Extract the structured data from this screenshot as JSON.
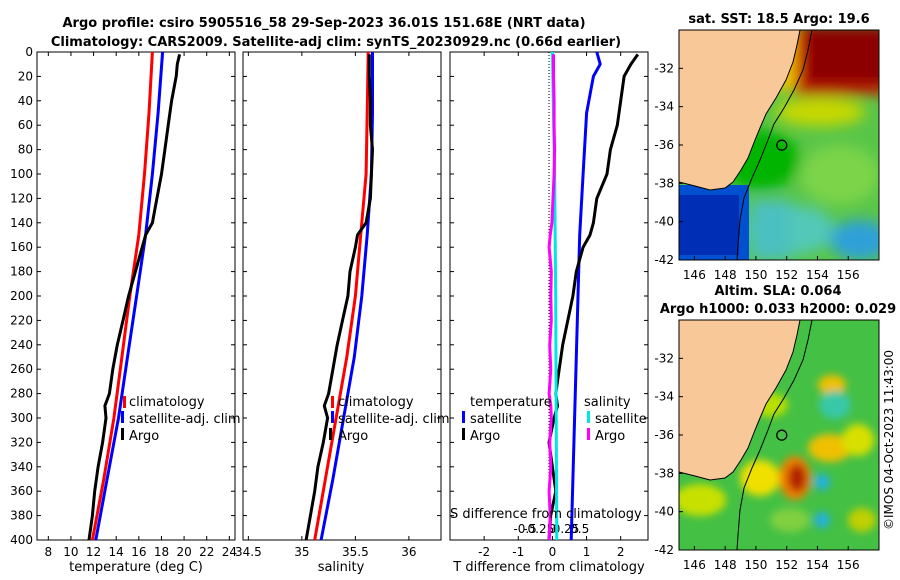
{
  "figure": {
    "title_line1": "Argo profile: csiro 5905516_58 29-Sep-2023 36.01S 151.68E (NRT data)",
    "title_line2": "Climatology: CARS2009. Satellite-adj clim: synTS_20230929.nc (0.66d earlier)",
    "credit": "©IMOS 04-Oct-2023 11:43:00"
  },
  "chart_data": [
    {
      "id": "temperature",
      "type": "line",
      "xlabel": "temperature (deg C)",
      "ylabel": "",
      "xlim": [
        7,
        24.5
      ],
      "ylim": [
        0,
        400
      ],
      "xticks": [
        8,
        10,
        12,
        14,
        16,
        18,
        20,
        22,
        24
      ],
      "xtick_labels": [
        "8",
        "10",
        "12",
        "14",
        "16",
        "18",
        "20",
        "22",
        "24"
      ],
      "yticks": [
        0,
        20,
        40,
        60,
        80,
        100,
        120,
        140,
        160,
        180,
        200,
        220,
        240,
        260,
        280,
        300,
        320,
        340,
        360,
        380,
        400
      ],
      "legend": [
        "climatology",
        "satellite-adj. clim",
        "Argo"
      ],
      "series": [
        {
          "name": "climatology",
          "color": "#ff0000",
          "depth": [
            0,
            50,
            100,
            150,
            200,
            250,
            300,
            350,
            400
          ],
          "values": [
            17.2,
            16.9,
            16.5,
            16.0,
            15.2,
            14.5,
            13.8,
            12.9,
            11.9
          ]
        },
        {
          "name": "satellite-adj. clim",
          "color": "#0000ff",
          "depth": [
            0,
            50,
            100,
            150,
            200,
            250,
            300,
            350,
            400
          ],
          "values": [
            18.1,
            17.7,
            17.2,
            16.6,
            15.8,
            15.0,
            14.2,
            13.2,
            12.2
          ]
        },
        {
          "name": "Argo",
          "color": "#000000",
          "depth": [
            2,
            10,
            20,
            40,
            60,
            80,
            100,
            120,
            140,
            150,
            160,
            180,
            200,
            220,
            240,
            260,
            280,
            290,
            300,
            320,
            340,
            360,
            380,
            400
          ],
          "values": [
            19.6,
            19.4,
            19.3,
            18.9,
            18.6,
            18.3,
            18.0,
            17.6,
            17.2,
            16.6,
            16.3,
            15.7,
            15.1,
            14.6,
            14.1,
            13.7,
            13.4,
            13.0,
            13.1,
            12.8,
            12.4,
            12.1,
            11.9,
            11.6
          ]
        }
      ]
    },
    {
      "id": "salinity",
      "type": "line",
      "xlabel": "salinity",
      "xlim": [
        34.45,
        36.3
      ],
      "ylim": [
        0,
        400
      ],
      "xticks": [
        34.5,
        35,
        35.5,
        36
      ],
      "xtick_labels": [
        "34.5",
        "35",
        "35.5",
        "36"
      ],
      "legend": [
        "climatology",
        "satellite-adj. clim",
        "Argo"
      ],
      "series": [
        {
          "name": "climatology",
          "color": "#ff0000",
          "depth": [
            0,
            50,
            100,
            150,
            200,
            250,
            300,
            350,
            400
          ],
          "values": [
            35.62,
            35.61,
            35.6,
            35.55,
            35.5,
            35.42,
            35.32,
            35.22,
            35.12
          ]
        },
        {
          "name": "satellite-adj. clim",
          "color": "#0000ff",
          "depth": [
            0,
            50,
            100,
            150,
            200,
            250,
            300,
            350,
            400
          ],
          "values": [
            35.66,
            35.66,
            35.65,
            35.61,
            35.56,
            35.49,
            35.39,
            35.29,
            35.18
          ]
        },
        {
          "name": "Argo",
          "color": "#000000",
          "depth": [
            2,
            20,
            40,
            60,
            80,
            100,
            120,
            140,
            150,
            160,
            180,
            200,
            220,
            240,
            260,
            280,
            290,
            300,
            320,
            340,
            360,
            380,
            400
          ],
          "values": [
            35.63,
            35.63,
            35.64,
            35.64,
            35.66,
            35.65,
            35.64,
            35.6,
            35.52,
            35.5,
            35.45,
            35.43,
            35.38,
            35.33,
            35.29,
            35.25,
            35.21,
            35.24,
            35.2,
            35.15,
            35.12,
            35.08,
            35.04
          ]
        }
      ]
    },
    {
      "id": "differences",
      "type": "line",
      "xlabel": "T difference from climatology",
      "xlabel2": "S difference from climatology",
      "xlim": [
        -3,
        2.8
      ],
      "ylim": [
        0,
        400
      ],
      "xticks": [
        -2,
        -1,
        0,
        1,
        2
      ],
      "xtick_labels": [
        "-2",
        "-1",
        "0",
        "1",
        "2"
      ],
      "xticks2": [
        -0.5,
        -0.25,
        0,
        0.25,
        0.5
      ],
      "xtick2_labels": [
        "-0.5",
        "-0.25",
        "0",
        "0.25",
        "0.5"
      ],
      "legend_titles": [
        "temperature",
        "salinity"
      ],
      "legend_left": [
        "satellite",
        "Argo"
      ],
      "legend_right": [
        "satellite",
        "Argo"
      ],
      "series": [
        {
          "name": "T satellite",
          "color": "#0000ff",
          "depth": [
            0,
            10,
            20,
            50,
            100,
            150,
            200,
            250,
            300,
            350,
            400
          ],
          "values": [
            1.3,
            1.4,
            1.2,
            1.0,
            0.9,
            0.8,
            0.75,
            0.7,
            0.65,
            0.6,
            0.55
          ]
        },
        {
          "name": "T Argo",
          "color": "#000000",
          "depth": [
            2,
            10,
            20,
            40,
            60,
            80,
            100,
            120,
            140,
            150,
            160,
            180,
            200,
            220,
            240,
            260,
            280,
            290,
            300,
            320,
            340,
            360,
            380,
            400
          ],
          "values": [
            2.5,
            2.3,
            2.1,
            2.0,
            1.9,
            1.7,
            1.6,
            1.3,
            1.2,
            1.1,
            0.9,
            0.7,
            0.6,
            0.45,
            0.3,
            0.2,
            0.1,
            0.15,
            0.05,
            -0.1,
            0.0,
            0.1,
            -0.05,
            -0.1
          ]
        },
        {
          "name": "S satellite",
          "color": "#00e5e5",
          "depth": [
            0,
            100,
            200,
            300,
            400
          ],
          "values": [
            0.0,
            0.04,
            0.06,
            0.07,
            0.08
          ]
        },
        {
          "name": "S Argo",
          "color": "#ff00ff",
          "depth": [
            2,
            20,
            40,
            60,
            80,
            100,
            120,
            140,
            150,
            160,
            180,
            200,
            220,
            240,
            260,
            280,
            290,
            300,
            320,
            340,
            360,
            380,
            400
          ],
          "values": [
            0.02,
            0.02,
            0.03,
            0.03,
            0.04,
            0.03,
            0.01,
            -0.01,
            -0.04,
            -0.06,
            -0.02,
            -0.03,
            -0.02,
            -0.05,
            -0.03,
            -0.06,
            -0.03,
            -0.02,
            -0.05,
            -0.03,
            -0.06,
            -0.04,
            -0.06
          ]
        }
      ]
    },
    {
      "id": "sst_map",
      "type": "heatmap",
      "title": "sat. SST: 18.5 Argo: 19.6",
      "xlim": [
        145,
        158
      ],
      "ylim": [
        -42,
        -30
      ],
      "xticks": [
        146,
        148,
        150,
        152,
        154,
        156
      ],
      "yticks": [
        -32,
        -34,
        -36,
        -38,
        -40,
        -42
      ],
      "argo_lon": 151.68,
      "argo_lat": -36.01
    },
    {
      "id": "sla_map",
      "type": "heatmap",
      "title_line1": "Altim. SLA: 0.064",
      "title_line2": "Argo h1000: 0.033 h2000: 0.029",
      "xlim": [
        145,
        158
      ],
      "ylim": [
        -42,
        -30
      ],
      "xticks": [
        146,
        148,
        150,
        152,
        154,
        156
      ],
      "yticks": [
        -32,
        -34,
        -36,
        -38,
        -40,
        -42
      ],
      "argo_lon": 151.68,
      "argo_lat": -36.01
    }
  ]
}
